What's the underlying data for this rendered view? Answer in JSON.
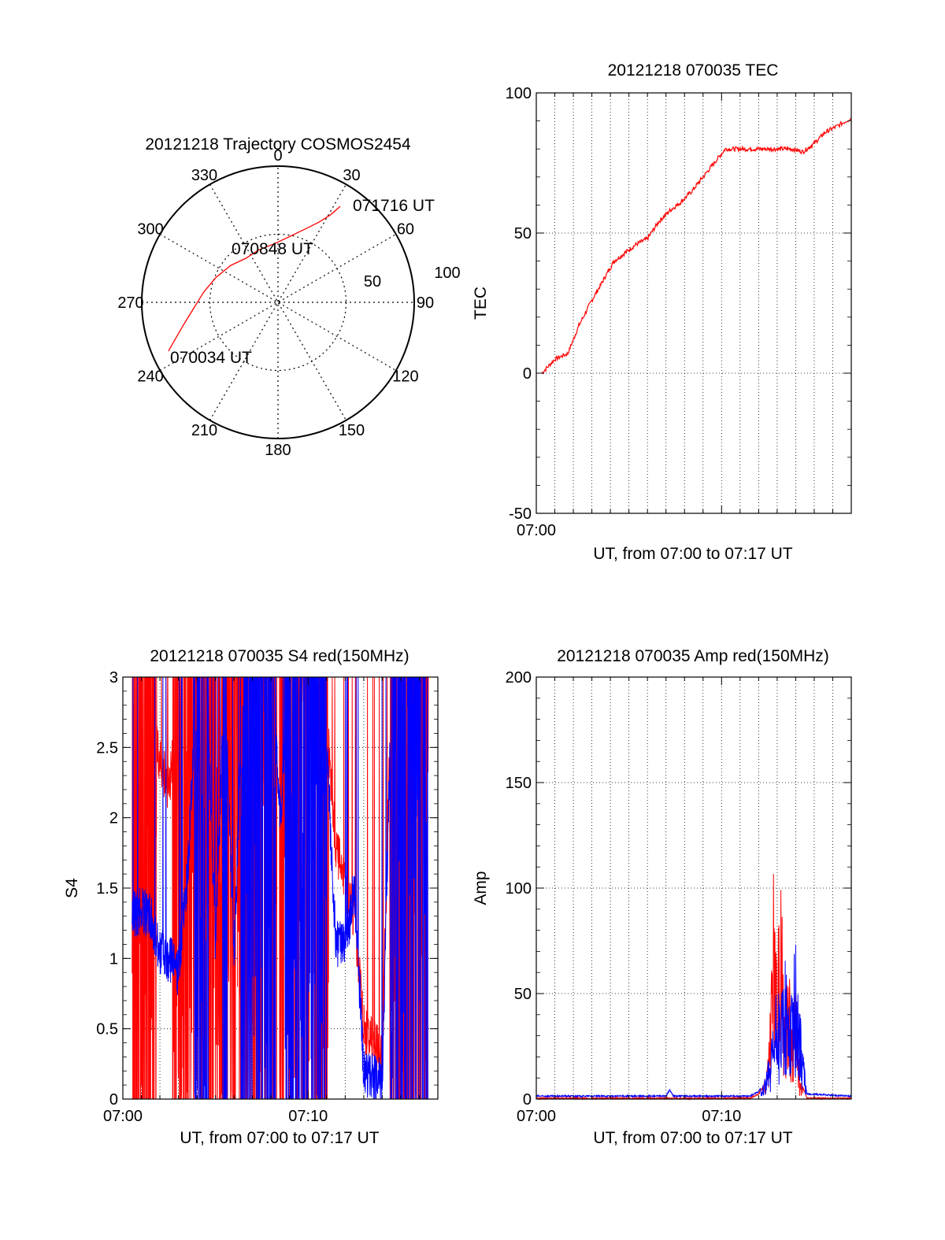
{
  "colors": {
    "red": "#ff0000",
    "blue": "#0000ff",
    "axis": "#000000",
    "grid": "#000000"
  },
  "charts": {
    "polar": {
      "type": "polar",
      "title": "20121218 Trajectory COSMOS2454",
      "angle_labels": [
        "0",
        "30",
        "60",
        "90",
        "120",
        "150",
        "180",
        "210",
        "240",
        "270",
        "300",
        "330"
      ],
      "radius_labels": [
        "50",
        "100"
      ],
      "annotations": [
        "071716 UT",
        "070848 UT",
        "070034 UT"
      ],
      "trajectory": {
        "points": [
          [
            246,
            88
          ],
          [
            256,
            72
          ],
          [
            266,
            62
          ],
          [
            278,
            55
          ],
          [
            292,
            49
          ],
          [
            308,
            44
          ],
          [
            324,
            40
          ],
          [
            340,
            41
          ],
          [
            356,
            43
          ],
          [
            10,
            49
          ],
          [
            20,
            57
          ],
          [
            27,
            66
          ],
          [
            31,
            75
          ],
          [
            33,
            84
          ]
        ]
      }
    },
    "tec": {
      "type": "line",
      "title": "20121218 070035 TEC",
      "xlabel": "UT, from 07:00 to 07:17 UT",
      "ylabel": "TEC",
      "xlim": [
        0,
        17
      ],
      "ylim": [
        -50,
        100
      ],
      "y_ticks": [
        "100",
        "50",
        "0",
        "-50"
      ],
      "x_tick_labels": [
        "07:00"
      ],
      "series": [
        {
          "color": "red",
          "x": [
            0.3,
            1.0,
            1.7,
            2.3,
            3.0,
            3.6,
            4.2,
            4.8,
            5.4,
            6.0,
            6.6,
            7.2,
            7.8,
            8.4,
            9.0,
            9.6,
            10.2,
            10.8,
            11.4,
            12.0,
            12.6,
            13.2,
            13.8,
            14.4,
            15.0,
            15.6,
            16.2,
            17.0
          ],
          "y": [
            0,
            5,
            7,
            17,
            26,
            33,
            40,
            43,
            46,
            48,
            54,
            58,
            61,
            65,
            70,
            75,
            80,
            80,
            80,
            80,
            80,
            80,
            80,
            79,
            82,
            86,
            88,
            91
          ]
        }
      ]
    },
    "s4": {
      "type": "line",
      "title": "20121218 070035 S4 red(150MHz)",
      "xlabel": "UT, from 07:00 to 07:17 UT",
      "ylabel": "S4",
      "xlim": [
        0,
        17
      ],
      "ylim": [
        0,
        3
      ],
      "y_ticks": [
        "3",
        "2.5",
        "2",
        "1.5",
        "1",
        "0.5",
        "0"
      ],
      "x_tick_labels": [
        "07:00",
        "07:10"
      ],
      "series": [
        {
          "color": "red",
          "x": [
            0.5,
            1.0,
            1.5,
            2.0,
            2.5,
            3.0,
            3.5,
            4.0,
            4.5,
            5.0,
            5.5,
            6.0,
            6.5,
            7.0,
            7.5,
            8.0,
            8.5,
            9.0,
            9.5,
            10.0,
            10.5,
            11.0,
            11.5,
            12.0,
            12.5,
            13.0,
            13.5,
            14.0,
            14.5,
            15.0,
            15.5,
            16.0,
            16.5
          ],
          "y": [
            3,
            2.6,
            2.7,
            2.4,
            2.2,
            3,
            3,
            2.5,
            3,
            2.8,
            3,
            2.9,
            3,
            3,
            2.8,
            3,
            3,
            3,
            2.9,
            3,
            3,
            2.7,
            1.8,
            1.5,
            1.3,
            0.5,
            0.4,
            0.3,
            3,
            3,
            3,
            3,
            3
          ]
        },
        {
          "color": "blue",
          "x": [
            0.5,
            1.0,
            1.5,
            2.0,
            2.5,
            3.0,
            3.5,
            4.0,
            4.5,
            5.0,
            5.5,
            6.0,
            6.5,
            7.0,
            7.5,
            8.0,
            8.5,
            9.0,
            9.5,
            10.0,
            10.5,
            11.0,
            11.5,
            12.0,
            12.5,
            13.0,
            13.5,
            14.0,
            14.5,
            15.0,
            15.5,
            16.0,
            16.5
          ],
          "y": [
            1.3,
            1.35,
            1.3,
            1.05,
            1.0,
            0.9,
            1.6,
            3,
            3,
            1.1,
            3,
            1.0,
            3,
            3,
            3,
            3,
            2.0,
            3,
            3,
            3,
            3,
            2.5,
            1.1,
            1.1,
            1.5,
            0.2,
            0.15,
            0.12,
            3,
            3,
            3,
            3,
            3
          ]
        }
      ]
    },
    "amp": {
      "type": "line",
      "title": "20121218 070035 Amp red(150MHz)",
      "xlabel": "UT, from 07:00 to 07:17 UT",
      "ylabel": "Amp",
      "xlim": [
        0,
        17
      ],
      "ylim": [
        0,
        200
      ],
      "y_ticks": [
        "200",
        "150",
        "100",
        "50",
        "0"
      ],
      "x_tick_labels": [
        "07:00",
        "07:10"
      ],
      "series": [
        {
          "color": "red",
          "x": [
            0,
            11.5,
            12.0,
            12.4,
            12.6,
            12.8,
            13.0,
            13.2,
            13.4,
            13.6,
            13.8,
            14.0,
            14.2,
            14.6,
            17
          ],
          "y": [
            0,
            0,
            2,
            8,
            30,
            100,
            60,
            95,
            40,
            70,
            30,
            50,
            10,
            0,
            0
          ]
        },
        {
          "color": "blue",
          "x": [
            0,
            7.0,
            7.2,
            7.4,
            7.6,
            11.5,
            12.0,
            12.4,
            12.8,
            13.0,
            13.2,
            13.4,
            13.6,
            13.8,
            14.0,
            14.2,
            14.6,
            17
          ],
          "y": [
            1,
            1,
            4,
            1,
            1,
            1,
            3,
            10,
            30,
            50,
            40,
            60,
            45,
            55,
            65,
            40,
            2,
            1
          ]
        }
      ]
    }
  }
}
